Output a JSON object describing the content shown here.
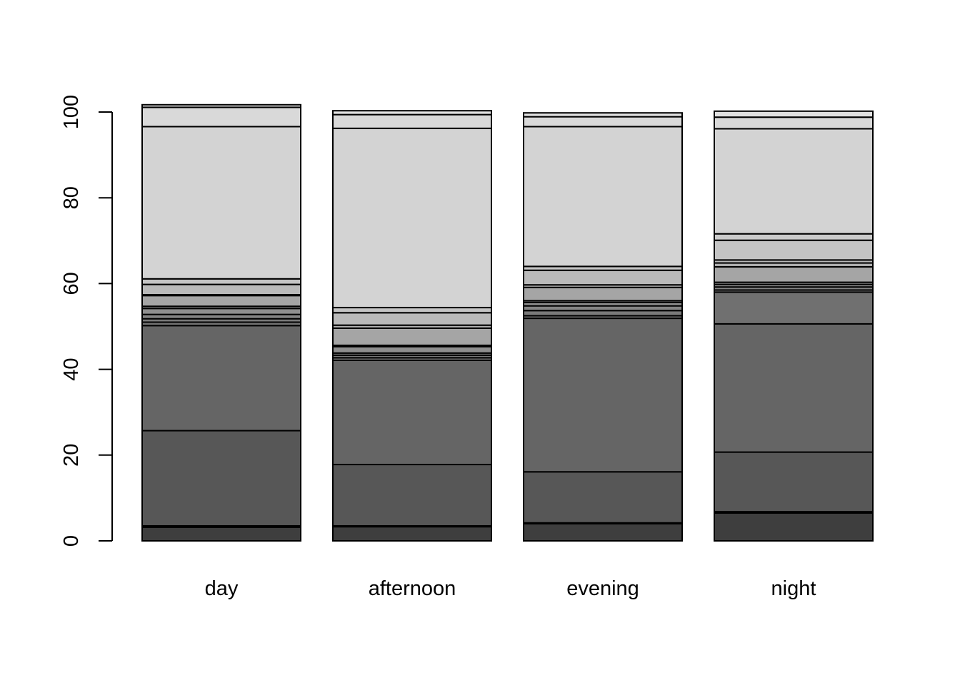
{
  "chart_data": {
    "type": "bar",
    "stacked": true,
    "categories": [
      "day",
      "afternoon",
      "evening",
      "night"
    ],
    "ylim": [
      0,
      100
    ],
    "yticks": [
      "0",
      "20",
      "40",
      "60",
      "80",
      "100"
    ],
    "ytick_values": [
      0,
      20,
      40,
      60,
      80,
      100
    ],
    "title": "",
    "xlabel": "",
    "ylabel": "",
    "legend": "none",
    "grid": false,
    "segment_colors": [
      "#3e3e3e",
      "#4b4b4b",
      "#575757",
      "#656565",
      "#707070",
      "#7a7a7a",
      "#858585",
      "#8f8f8f",
      "#9a9a9a",
      "#a5a5a5",
      "#b0b0b0",
      "#bababa",
      "#c4c4c4",
      "#cbcbcb",
      "#d3d3d3",
      "#d9d9d9",
      "#e2e2e2"
    ],
    "series": [
      {
        "values": [
          3.2,
          3.3,
          4.0,
          6.5
        ]
      },
      {
        "values": [
          0.3,
          0.2,
          0.2,
          0.3
        ]
      },
      {
        "values": [
          22.2,
          14.3,
          11.9,
          13.9
        ]
      },
      {
        "values": [
          24.5,
          24.3,
          35.8,
          29.9
        ]
      },
      {
        "values": [
          0.8,
          0.6,
          0.6,
          7.4
        ]
      },
      {
        "values": [
          0.8,
          0.6,
          1.2,
          0.5
        ]
      },
      {
        "values": [
          1.0,
          0.5,
          1.1,
          0.7
        ]
      },
      {
        "values": [
          1.4,
          1.5,
          0.8,
          0.6
        ]
      },
      {
        "values": [
          0.5,
          0.3,
          0.4,
          0.5
        ]
      },
      {
        "values": [
          2.5,
          4.0,
          3.1,
          3.6
        ]
      },
      {
        "values": [
          0.2,
          0.7,
          0.6,
          0.9
        ]
      },
      {
        "values": [
          2.4,
          2.9,
          3.4,
          0.7
        ]
      },
      {
        "values": [
          1.3,
          1.2,
          0.9,
          4.6
        ]
      },
      {
        "values": [
          0,
          0,
          0,
          1.5
        ]
      },
      {
        "values": [
          35.5,
          41.8,
          32.6,
          24.5
        ]
      },
      {
        "values": [
          4.5,
          3.2,
          2.3,
          2.7
        ]
      },
      {
        "values": [
          0.6,
          0.9,
          0.9,
          1.4
        ]
      }
    ]
  }
}
